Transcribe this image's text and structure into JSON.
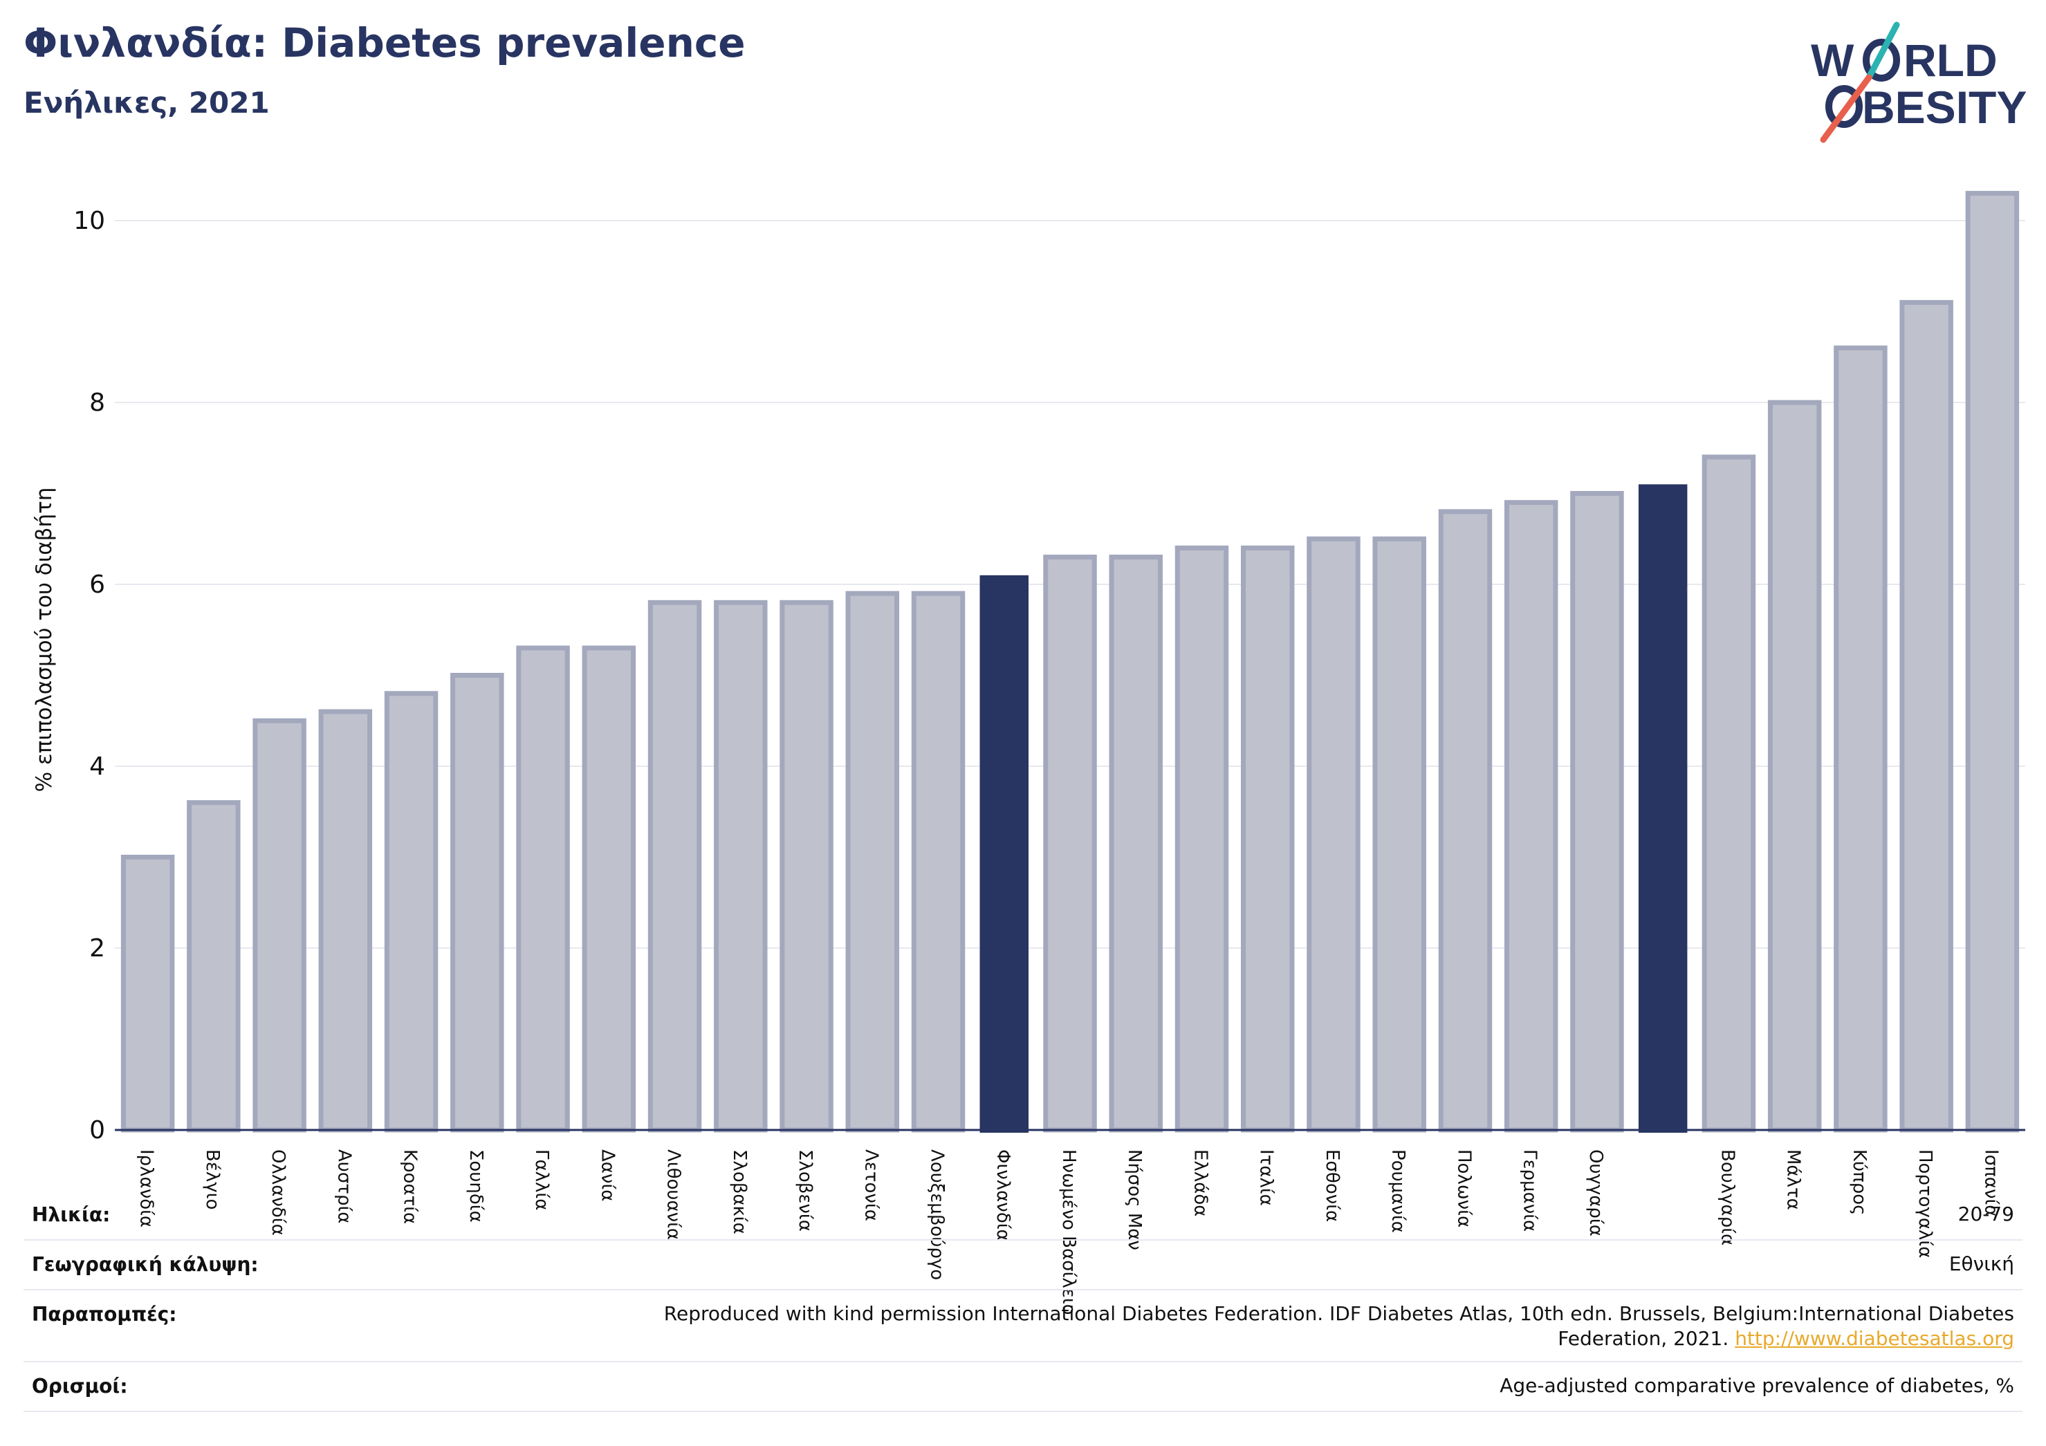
{
  "header": {
    "title": "Φινλανδία: Diabetes prevalence",
    "subtitle": "Ενήλικες, 2021"
  },
  "logo": {
    "line1": "W",
    "line1b": "RLD",
    "line2": "BESITY",
    "colors": {
      "navy": "#283562",
      "teal": "#2bb3b1",
      "coral": "#e8604c"
    }
  },
  "chart_data": {
    "type": "bar",
    "title": "Φινλανδία: Diabetes prevalence",
    "subtitle": "Ενήλικες, 2021",
    "xlabel": "",
    "ylabel": "% επιπολασμού του διαβήτη",
    "ylim": [
      0,
      10.4
    ],
    "yticks": [
      0,
      2,
      4,
      6,
      8,
      10
    ],
    "grid": true,
    "categories": [
      "Ιρλανδία",
      "Βέλγιο",
      "Ολλανδία",
      "Αυστρία",
      "Κροατία",
      "Σουηδία",
      "Γαλλία",
      "Δανία",
      "Λιθουανία",
      "Σλοβακία",
      "Σλοβενία",
      "Λετονία",
      "Λουξεμβούργο",
      "Φινλανδία",
      "Ηνωμένο Βασίλειο",
      "Νήσος Μαν",
      "Ελλάδα",
      "Ιταλία",
      "Εσθονία",
      "Ρουμανία",
      "Πολωνία",
      "Γερμανία",
      "Ουγγαρία",
      "",
      "Βουλγαρία",
      "Μάλτα",
      "Κύπρος",
      "Πορτογαλία",
      "Ισπανία"
    ],
    "values": [
      3.0,
      3.6,
      4.5,
      4.6,
      4.8,
      5.0,
      5.3,
      5.3,
      5.8,
      5.8,
      5.8,
      5.9,
      5.9,
      6.1,
      6.3,
      6.3,
      6.4,
      6.4,
      6.5,
      6.5,
      6.8,
      6.9,
      7.0,
      7.1,
      7.4,
      8.0,
      8.6,
      9.1,
      10.3
    ],
    "highlighted": [
      13,
      23
    ],
    "colors": {
      "highlight": "#283562",
      "bar": "#bfc1cd",
      "bar_edge": "#a3a8bd",
      "grid": "#e8e9ef",
      "axis": "#283562"
    }
  },
  "meta": {
    "age": {
      "label": "Ηλικία:",
      "value": "20-79"
    },
    "coverage": {
      "label": "Γεωγραφική κάλυψη:",
      "value": "Εθνική"
    },
    "references": {
      "label": "Παραπομπές:",
      "text_line1": "Reproduced with kind permission International Diabetes Federation.  IDF Diabetes Atlas, 10th edn. Brussels, Belgium:International Diabetes",
      "text_line2": "Federation, 2021.",
      "link": "http://www.diabetesatlas.org"
    },
    "definitions": {
      "label": "Ορισμοί:",
      "value": "Age-adjusted comparative prevalence of diabetes, %"
    }
  }
}
